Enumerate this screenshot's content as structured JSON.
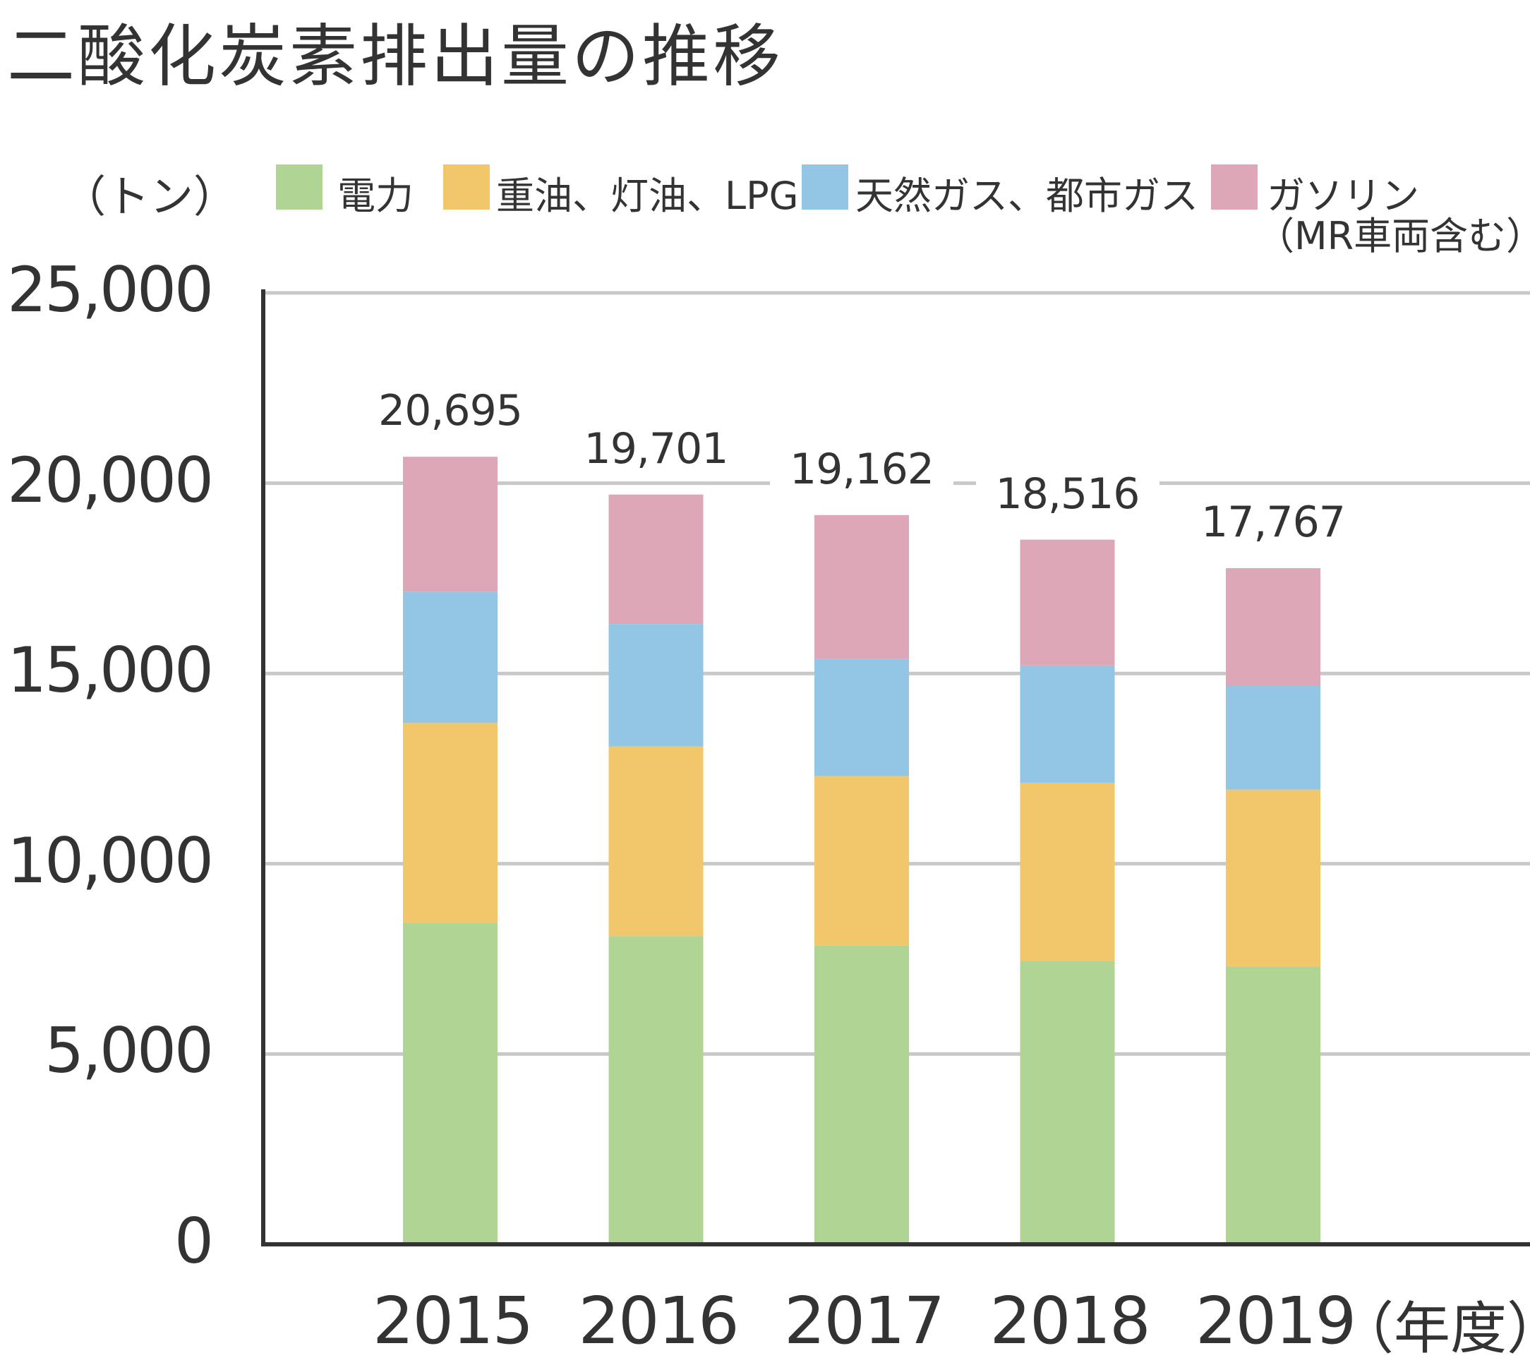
{
  "chart_data": {
    "type": "bar",
    "stacked": true,
    "title": "二酸化炭素排出量の推移",
    "ylabel": "（トン）",
    "xlabel": "（年度）",
    "ylim": [
      0,
      25000
    ],
    "yticks": [
      "0",
      "5,000",
      "10,000",
      "15,000",
      "20,000",
      "25,000"
    ],
    "ytick_values": [
      0,
      5000,
      10000,
      15000,
      20000,
      25000
    ],
    "grid": true,
    "legend_position": "top",
    "categories": [
      "2015",
      "2016",
      "2017",
      "2018",
      "2019"
    ],
    "series": [
      {
        "name": "電力",
        "color": "#b0d494",
        "values": [
          8450,
          8100,
          7850,
          7450,
          7300
        ]
      },
      {
        "name": "重油、灯油、LPG",
        "color": "#f2c66a",
        "values": [
          5250,
          4980,
          4450,
          4680,
          4650
        ]
      },
      {
        "name": "天然ガス、都市ガス",
        "color": "#93c5e5",
        "values": [
          3450,
          3220,
          3080,
          3080,
          2720
        ]
      },
      {
        "name": "ガソリン（MR車両含む）",
        "color": "#dea7b8",
        "values": [
          3545,
          3401,
          3782,
          3306,
          3097
        ]
      }
    ],
    "totals": [
      20695,
      19701,
      19162,
      18516,
      17767
    ],
    "total_labels": [
      "20,695",
      "19,701",
      "19,162",
      "18,516",
      "17,767"
    ]
  },
  "legend": {
    "items": [
      {
        "label": "電力",
        "color": "#b0d494"
      },
      {
        "label": "重油、灯油、LPG",
        "color": "#f2c66a"
      },
      {
        "label": "天然ガス、都市ガス",
        "color": "#93c5e5"
      },
      {
        "label": "ガソリン",
        "label_line2": "（MR車両含む）",
        "color": "#dea7b8"
      }
    ]
  }
}
